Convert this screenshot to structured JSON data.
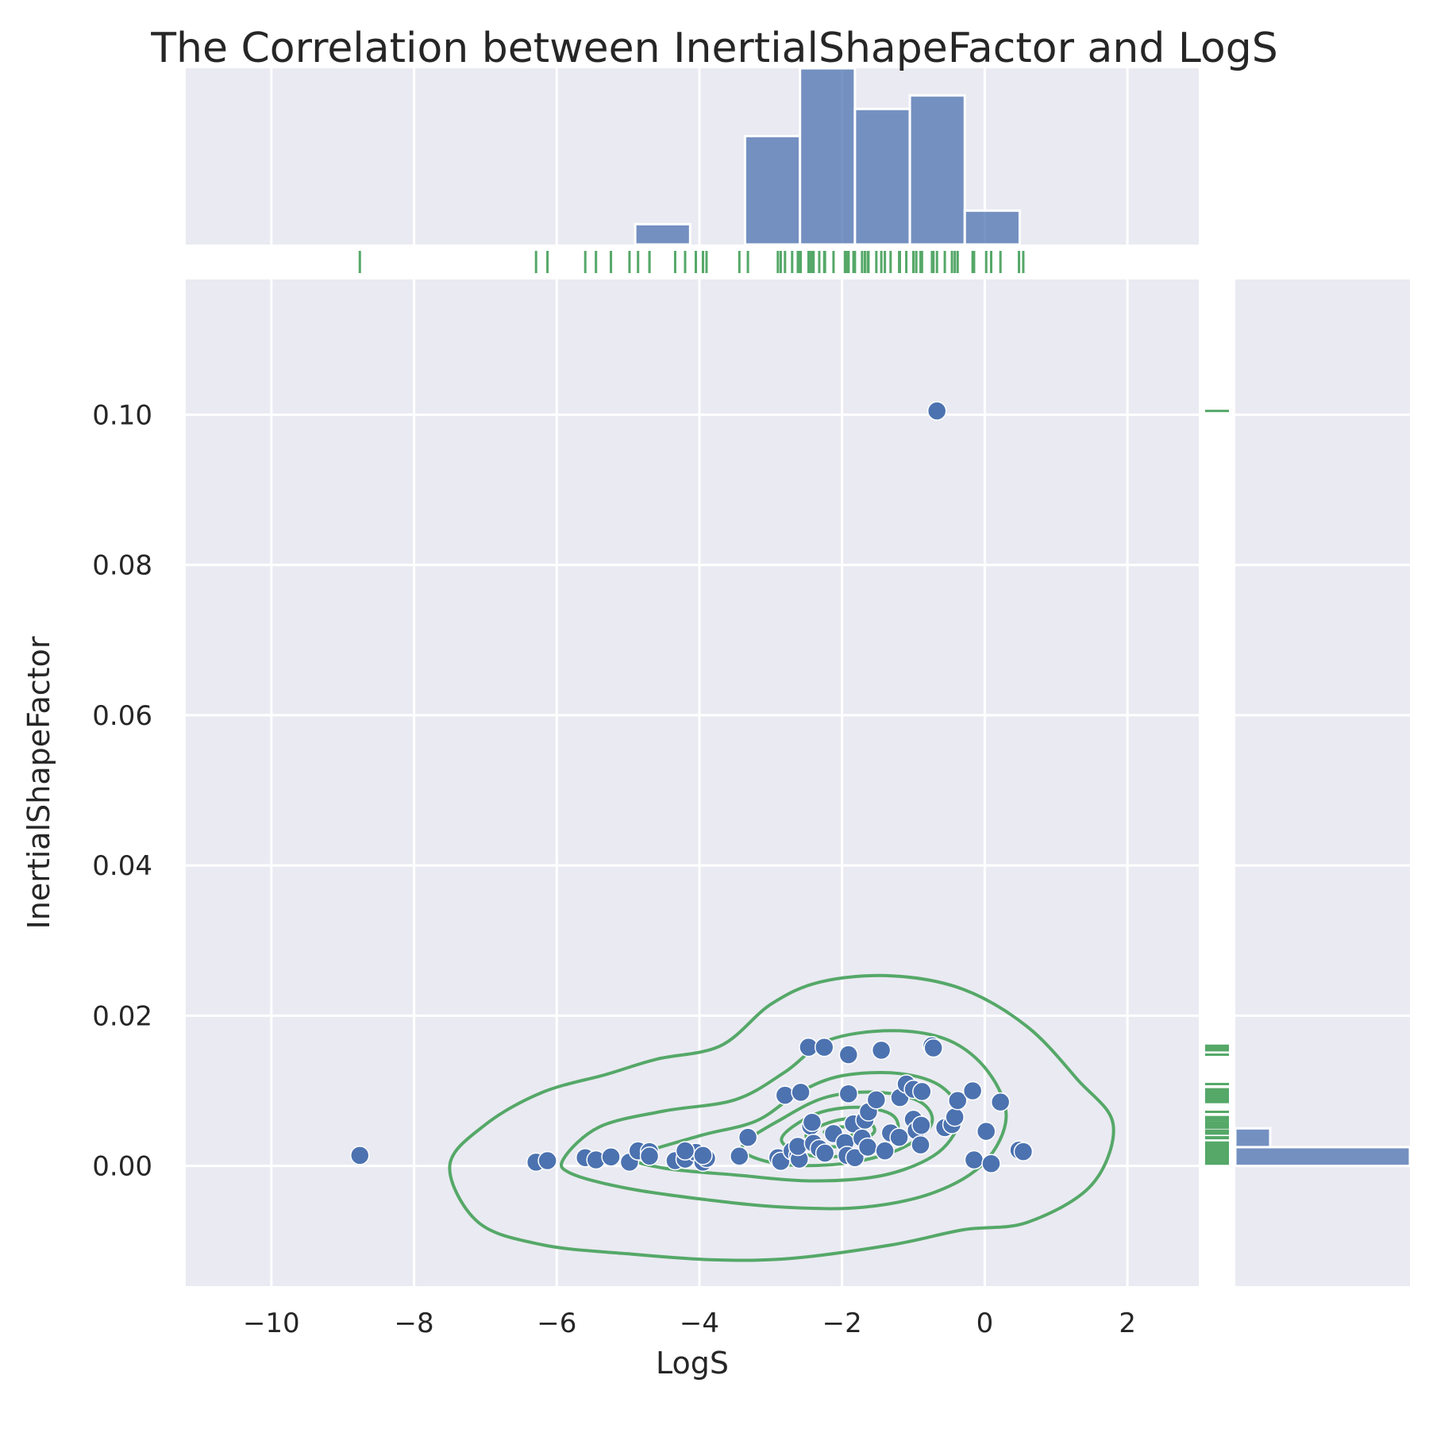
{
  "chart_data": {
    "type": "scatter",
    "title": "The Correlation between InertialShapeFactor and LogS",
    "xlabel": "LogS",
    "ylabel": "InertialShapeFactor",
    "xlim": [
      -11.2,
      3.0
    ],
    "ylim": [
      -0.016,
      0.118
    ],
    "x_ticks": [
      -10,
      -8,
      -6,
      -4,
      -2,
      0,
      2
    ],
    "x_tick_labels": [
      "−10",
      "−8",
      "−6",
      "−4",
      "−2",
      "0",
      "2"
    ],
    "y_ticks": [
      0.0,
      0.02,
      0.04,
      0.06,
      0.08,
      0.1
    ],
    "y_tick_labels": [
      "0.00",
      "0.02",
      "0.04",
      "0.06",
      "0.08",
      "0.10"
    ],
    "grid": true,
    "colors": {
      "points": "#4c72b0",
      "rug_and_kde": "#55a868",
      "panel": "#eaeaf2"
    },
    "points": [
      [
        -8.76,
        0.0014
      ],
      [
        -6.29,
        0.0005
      ],
      [
        -6.13,
        0.0007
      ],
      [
        -5.6,
        0.0011
      ],
      [
        -5.45,
        0.0008
      ],
      [
        -5.24,
        0.0012
      ],
      [
        -4.98,
        0.0005
      ],
      [
        -4.86,
        0.002
      ],
      [
        -4.7,
        0.0019
      ],
      [
        -4.7,
        0.0013
      ],
      [
        -4.34,
        0.0007
      ],
      [
        -4.2,
        0.0009
      ],
      [
        -4.05,
        0.0018
      ],
      [
        -4.2,
        0.002
      ],
      [
        -3.95,
        0.0005
      ],
      [
        -3.9,
        0.001
      ],
      [
        -3.95,
        0.0014
      ],
      [
        -3.44,
        0.0013
      ],
      [
        -3.32,
        0.0038
      ],
      [
        -2.9,
        0.0011
      ],
      [
        -2.86,
        0.0006
      ],
      [
        -2.8,
        0.0094
      ],
      [
        -2.7,
        0.002
      ],
      [
        -2.62,
        0.0014
      ],
      [
        -2.6,
        0.0009
      ],
      [
        -2.58,
        0.0098
      ],
      [
        -2.62,
        0.0026
      ],
      [
        -2.47,
        0.0158
      ],
      [
        -2.44,
        0.0053
      ],
      [
        -2.42,
        0.0058
      ],
      [
        -2.4,
        0.003
      ],
      [
        -2.32,
        0.0023
      ],
      [
        -2.25,
        0.0158
      ],
      [
        -2.24,
        0.0017
      ],
      [
        -2.12,
        0.0043
      ],
      [
        -1.96,
        0.0031
      ],
      [
        -1.91,
        0.0148
      ],
      [
        -1.91,
        0.0096
      ],
      [
        -1.93,
        0.0014
      ],
      [
        -1.82,
        0.0011
      ],
      [
        -1.84,
        0.0056
      ],
      [
        -1.72,
        0.0037
      ],
      [
        -1.68,
        0.0061
      ],
      [
        -1.63,
        0.0072
      ],
      [
        -1.64,
        0.0025
      ],
      [
        -1.52,
        0.0088
      ],
      [
        -1.45,
        0.0154
      ],
      [
        -1.4,
        0.002
      ],
      [
        -1.32,
        0.0044
      ],
      [
        -1.19,
        0.0091
      ],
      [
        -1.2,
        0.0038
      ],
      [
        -1.1,
        0.0109
      ],
      [
        -1.0,
        0.0062
      ],
      [
        -1.0,
        0.0102
      ],
      [
        -0.96,
        0.0047
      ],
      [
        -0.89,
        0.0054
      ],
      [
        -0.9,
        0.0028
      ],
      [
        -0.88,
        0.0099
      ],
      [
        -0.74,
        0.016
      ],
      [
        -0.72,
        0.0157
      ],
      [
        -0.67,
        0.1005
      ],
      [
        -0.56,
        0.0051
      ],
      [
        -0.46,
        0.0055
      ],
      [
        -0.42,
        0.0065
      ],
      [
        -0.38,
        0.0087
      ],
      [
        -0.17,
        0.01
      ],
      [
        -0.15,
        0.0008
      ],
      [
        0.02,
        0.0046
      ],
      [
        0.09,
        0.0003
      ],
      [
        0.22,
        0.0085
      ],
      [
        0.48,
        0.0021
      ],
      [
        0.54,
        0.0019
      ]
    ],
    "x_histogram": {
      "bin_edges": [
        -4.9,
        -4.13,
        -3.36,
        -2.59,
        -1.82,
        -1.05,
        -0.28,
        0.49
      ],
      "counts": [
        3,
        0,
        16,
        26,
        20,
        22,
        5
      ]
    },
    "y_histogram": {
      "bin_edges": [
        0.0,
        0.0025,
        0.005
      ],
      "counts": [
        40,
        8
      ]
    },
    "kde_contours": [
      [
        [
          -7.5,
          0.0
        ],
        [
          -7.0,
          0.0055
        ],
        [
          -6.2,
          0.0098
        ],
        [
          -5.3,
          0.0122
        ],
        [
          -4.6,
          0.0142
        ],
        [
          -3.7,
          0.016
        ],
        [
          -3.0,
          0.0215
        ],
        [
          -2.3,
          0.0245
        ],
        [
          -1.3,
          0.0253
        ],
        [
          -0.3,
          0.0235
        ],
        [
          0.6,
          0.0185
        ],
        [
          1.3,
          0.0115
        ],
        [
          1.8,
          0.0055
        ],
        [
          1.5,
          -0.0025
        ],
        [
          0.6,
          -0.0075
        ],
        [
          -0.3,
          -0.0085
        ],
        [
          -1.3,
          -0.0105
        ],
        [
          -2.7,
          -0.0123
        ],
        [
          -3.8,
          -0.0125
        ],
        [
          -5.0,
          -0.0117
        ],
        [
          -6.2,
          -0.0105
        ],
        [
          -7.1,
          -0.0075
        ],
        [
          -7.5,
          0.0
        ]
      ],
      [
        [
          -5.9,
          0.001
        ],
        [
          -5.4,
          0.0052
        ],
        [
          -4.5,
          0.0073
        ],
        [
          -3.5,
          0.0088
        ],
        [
          -2.8,
          0.0125
        ],
        [
          -2.2,
          0.0167
        ],
        [
          -1.3,
          0.018
        ],
        [
          -0.5,
          0.0167
        ],
        [
          0.05,
          0.0125
        ],
        [
          0.3,
          0.0065
        ],
        [
          0.0,
          0.0005
        ],
        [
          -0.7,
          -0.0035
        ],
        [
          -1.7,
          -0.0055
        ],
        [
          -2.8,
          -0.0055
        ],
        [
          -3.9,
          -0.0045
        ],
        [
          -5.0,
          -0.003
        ],
        [
          -5.8,
          -0.001
        ],
        [
          -5.9,
          0.001
        ]
      ],
      [
        [
          -4.9,
          0.0012
        ],
        [
          -4.0,
          0.004
        ],
        [
          -3.2,
          0.006
        ],
        [
          -2.6,
          0.0098
        ],
        [
          -2.0,
          0.012
        ],
        [
          -1.2,
          0.0123
        ],
        [
          -0.6,
          0.0105
        ],
        [
          -0.35,
          0.0065
        ],
        [
          -0.65,
          0.0018
        ],
        [
          -1.4,
          -0.0012
        ],
        [
          -2.4,
          -0.002
        ],
        [
          -3.5,
          -0.0012
        ],
        [
          -4.5,
          -0.0003
        ],
        [
          -4.9,
          0.0012
        ]
      ],
      [
        [
          -3.4,
          0.0025
        ],
        [
          -2.8,
          0.0065
        ],
        [
          -2.2,
          0.0092
        ],
        [
          -1.5,
          0.0098
        ],
        [
          -0.9,
          0.0085
        ],
        [
          -0.75,
          0.0055
        ],
        [
          -1.2,
          0.0022
        ],
        [
          -2.0,
          0.0003
        ],
        [
          -2.9,
          0.0003
        ],
        [
          -3.4,
          0.0025
        ]
      ],
      [
        [
          -2.85,
          0.0035
        ],
        [
          -2.4,
          0.0068
        ],
        [
          -1.8,
          0.0078
        ],
        [
          -1.3,
          0.0068
        ],
        [
          -1.25,
          0.0042
        ],
        [
          -1.7,
          0.0018
        ],
        [
          -2.4,
          0.0013
        ],
        [
          -2.85,
          0.0035
        ]
      ],
      [
        [
          -2.5,
          0.0042
        ],
        [
          -2.1,
          0.006
        ],
        [
          -1.7,
          0.0062
        ],
        [
          -1.55,
          0.0045
        ],
        [
          -1.9,
          0.0028
        ],
        [
          -2.3,
          0.0027
        ],
        [
          -2.5,
          0.0042
        ]
      ],
      [
        [
          -2.25,
          0.0045
        ],
        [
          -2.0,
          0.0052
        ],
        [
          -1.82,
          0.0045
        ],
        [
          -2.0,
          0.0037
        ],
        [
          -2.25,
          0.0045
        ]
      ]
    ]
  }
}
